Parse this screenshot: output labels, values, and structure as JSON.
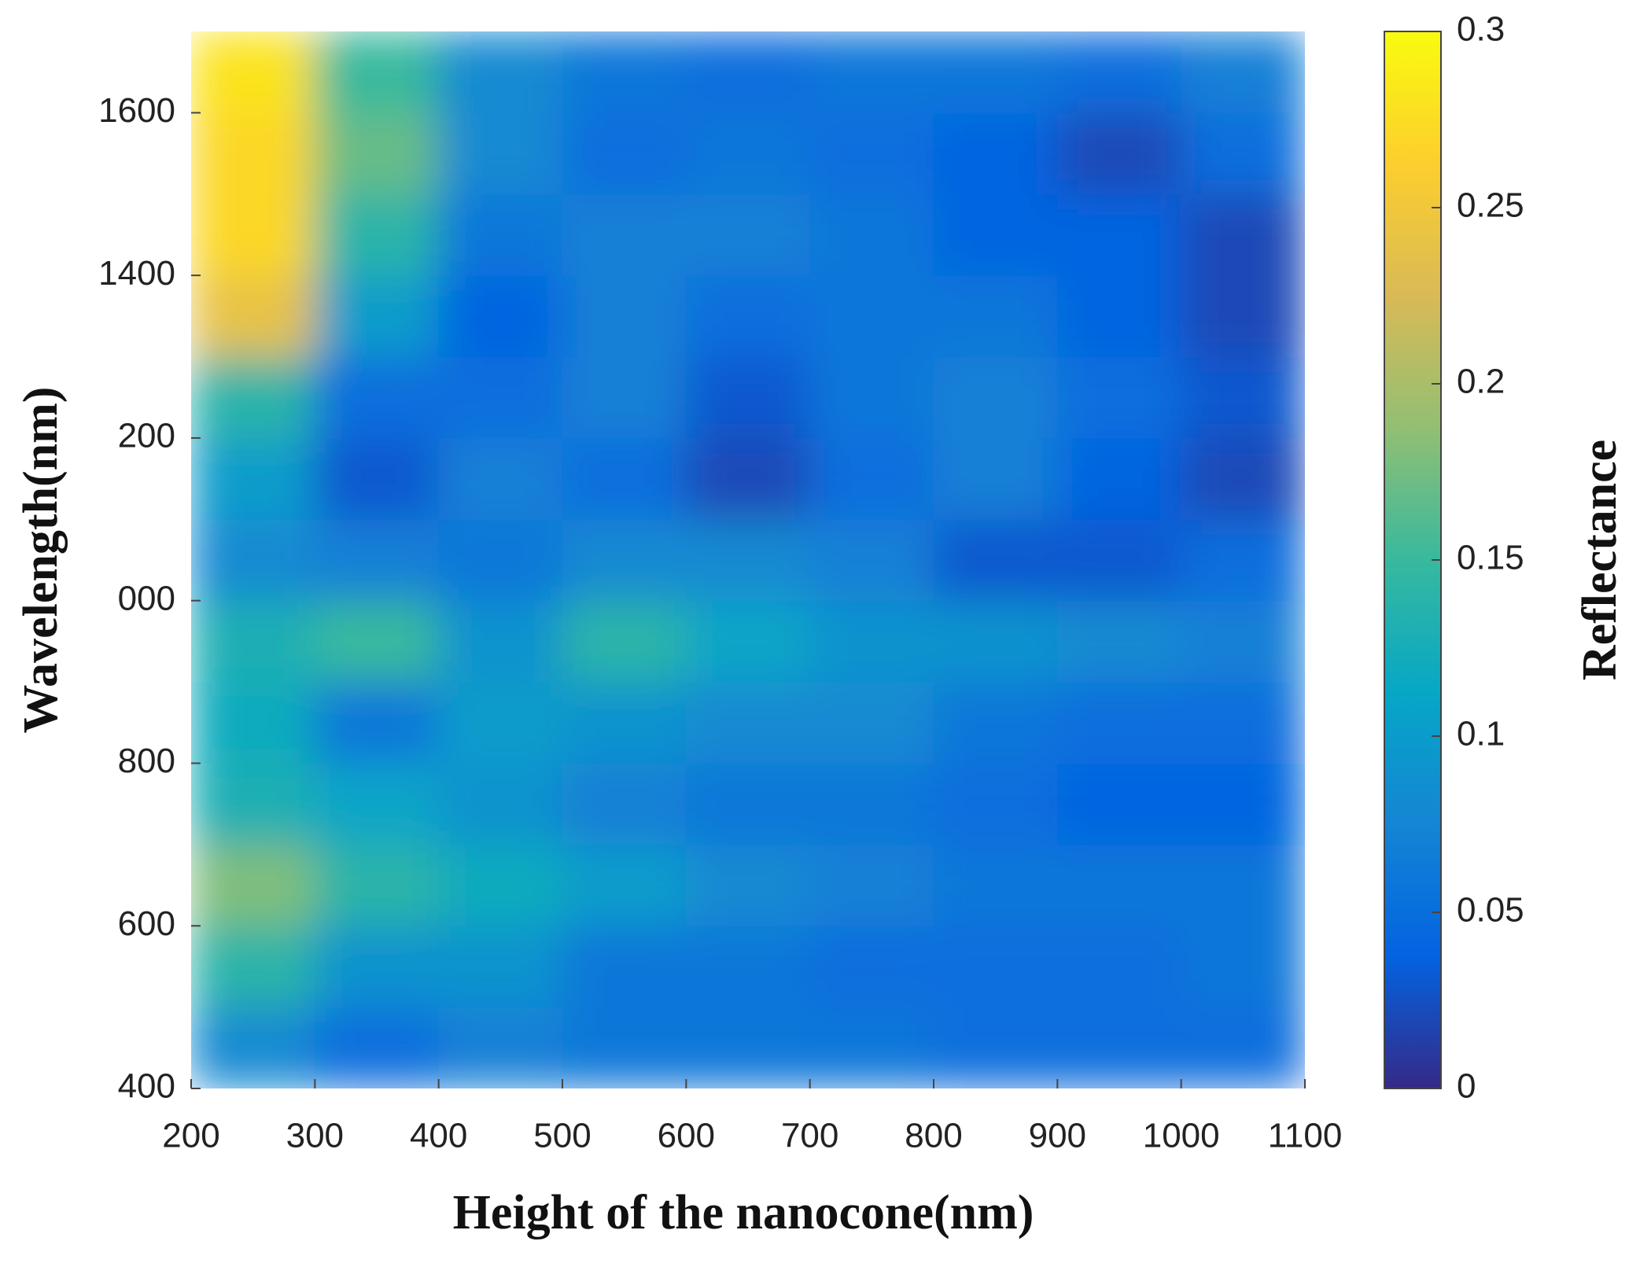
{
  "chart_data": {
    "type": "heatmap",
    "xlabel": "Height of the nanocone(nm)",
    "ylabel": "Wavelength(nm)",
    "colorbar_label": "Reflectance",
    "colormap": "parula",
    "x": [
      250,
      350,
      450,
      550,
      650,
      750,
      850,
      950,
      1050
    ],
    "y": [
      450,
      550,
      650,
      750,
      850,
      950,
      1050,
      1150,
      1250,
      1350,
      1450,
      1550,
      1650
    ],
    "values": [
      [
        0.08,
        0.05,
        0.07,
        0.06,
        0.06,
        0.06,
        0.05,
        0.05,
        0.05
      ],
      [
        0.14,
        0.09,
        0.09,
        0.06,
        0.06,
        0.05,
        0.05,
        0.05,
        0.06
      ],
      [
        0.18,
        0.14,
        0.12,
        0.1,
        0.08,
        0.07,
        0.06,
        0.06,
        0.06
      ],
      [
        0.13,
        0.11,
        0.09,
        0.07,
        0.06,
        0.06,
        0.05,
        0.04,
        0.04
      ],
      [
        0.12,
        0.06,
        0.1,
        0.09,
        0.08,
        0.08,
        0.06,
        0.05,
        0.05
      ],
      [
        0.13,
        0.15,
        0.09,
        0.14,
        0.11,
        0.09,
        0.09,
        0.08,
        0.07
      ],
      [
        0.08,
        0.07,
        0.06,
        0.08,
        0.08,
        0.07,
        0.03,
        0.03,
        0.05
      ],
      [
        0.1,
        0.03,
        0.07,
        0.05,
        0.02,
        0.05,
        0.07,
        0.04,
        0.02
      ],
      [
        0.14,
        0.05,
        0.05,
        0.07,
        0.03,
        0.06,
        0.07,
        0.05,
        0.03
      ],
      [
        0.24,
        0.1,
        0.04,
        0.07,
        0.05,
        0.06,
        0.06,
        0.04,
        0.02
      ],
      [
        0.27,
        0.14,
        0.06,
        0.07,
        0.07,
        0.06,
        0.04,
        0.04,
        0.02
      ],
      [
        0.27,
        0.17,
        0.08,
        0.05,
        0.06,
        0.05,
        0.04,
        0.02,
        0.05
      ],
      [
        0.28,
        0.15,
        0.08,
        0.06,
        0.05,
        0.06,
        0.06,
        0.05,
        0.07
      ]
    ],
    "xlim": [
      200,
      1100
    ],
    "xticks": [
      200,
      300,
      400,
      500,
      600,
      700,
      800,
      900,
      1000,
      1100
    ],
    "ylim": [
      400,
      1700
    ],
    "yticks": [
      400,
      600,
      800,
      {
        "value": 1000,
        "label": "000"
      },
      {
        "value": 1200,
        "label": "200"
      },
      1400,
      1600
    ],
    "clim": [
      0,
      0.3
    ],
    "cticks": [
      0,
      0.05,
      0.1,
      0.15,
      0.2,
      0.25,
      0.3
    ]
  }
}
